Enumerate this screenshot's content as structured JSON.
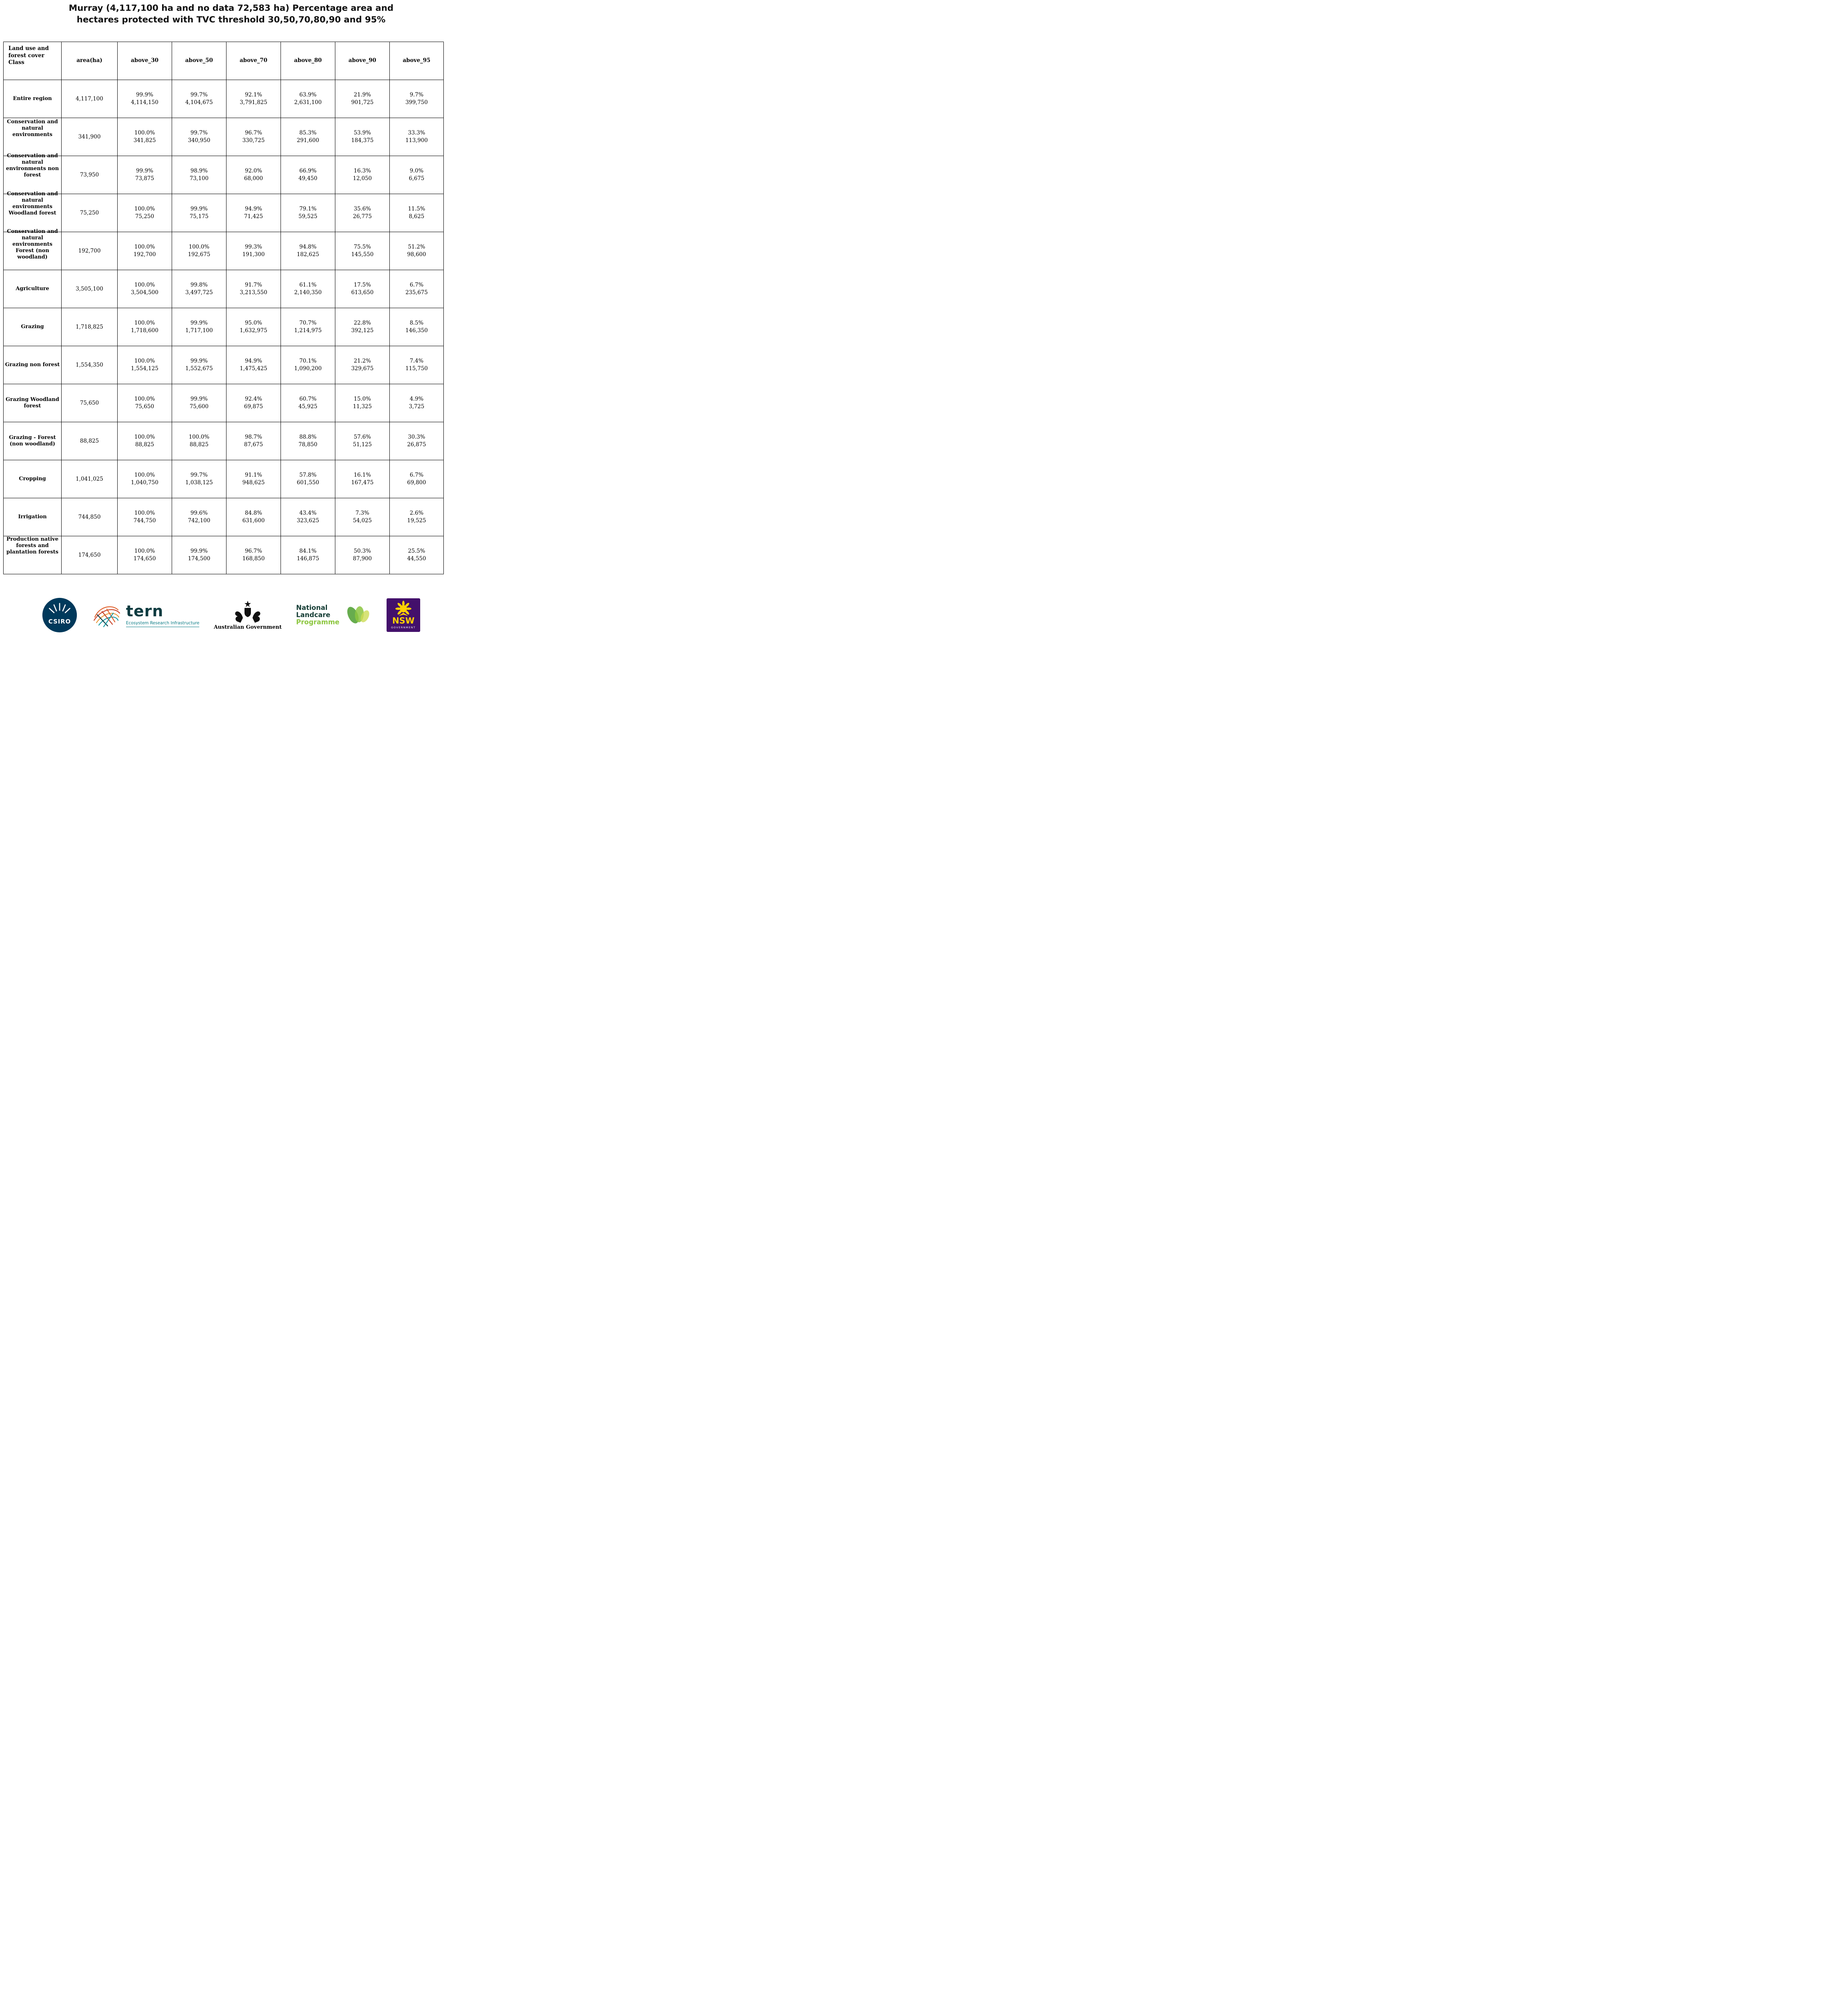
{
  "title": {
    "line1": "Murray (4,117,100 ha and no data 72,583 ha) Percentage area and",
    "line2": "hectares protected with TVC threshold 30,50,70,80,90 and 95%"
  },
  "table": {
    "columns": [
      "Land use and forest cover Class",
      "area(ha)",
      "above_30",
      "above_50",
      "above_70",
      "above_80",
      "above_90",
      "above_95"
    ],
    "rows": [
      {
        "label": "Entire region",
        "area": "4,117,100",
        "values": [
          {
            "pct": "99.9%",
            "ha": "4,114,150"
          },
          {
            "pct": "99.7%",
            "ha": "4,104,675"
          },
          {
            "pct": "92.1%",
            "ha": "3,791,825"
          },
          {
            "pct": "63.9%",
            "ha": "2,631,100"
          },
          {
            "pct": "21.9%",
            "ha": "901,725"
          },
          {
            "pct": "9.7%",
            "ha": "399,750"
          }
        ]
      },
      {
        "label": "Conservation and natural environments",
        "area": "341,900",
        "values": [
          {
            "pct": "100.0%",
            "ha": "341,825"
          },
          {
            "pct": "99.7%",
            "ha": "340,950"
          },
          {
            "pct": "96.7%",
            "ha": "330,725"
          },
          {
            "pct": "85.3%",
            "ha": "291,600"
          },
          {
            "pct": "53.9%",
            "ha": "184,375"
          },
          {
            "pct": "33.3%",
            "ha": "113,900"
          }
        ]
      },
      {
        "label": "Conservation and natural environments non forest",
        "area": "73,950",
        "values": [
          {
            "pct": "99.9%",
            "ha": "73,875"
          },
          {
            "pct": "98.9%",
            "ha": "73,100"
          },
          {
            "pct": "92.0%",
            "ha": "68,000"
          },
          {
            "pct": "66.9%",
            "ha": "49,450"
          },
          {
            "pct": "16.3%",
            "ha": "12,050"
          },
          {
            "pct": "9.0%",
            "ha": "6,675"
          }
        ]
      },
      {
        "label": "Conservation and natural environments Woodland forest",
        "area": "75,250",
        "values": [
          {
            "pct": "100.0%",
            "ha": "75,250"
          },
          {
            "pct": "99.9%",
            "ha": "75,175"
          },
          {
            "pct": "94.9%",
            "ha": "71,425"
          },
          {
            "pct": "79.1%",
            "ha": "59,525"
          },
          {
            "pct": "35.6%",
            "ha": "26,775"
          },
          {
            "pct": "11.5%",
            "ha": "8,625"
          }
        ]
      },
      {
        "label": "Conservation and natural environments Forest (non woodland)",
        "area": "192,700",
        "values": [
          {
            "pct": "100.0%",
            "ha": "192,700"
          },
          {
            "pct": "100.0%",
            "ha": "192,675"
          },
          {
            "pct": "99.3%",
            "ha": "191,300"
          },
          {
            "pct": "94.8%",
            "ha": "182,625"
          },
          {
            "pct": "75.5%",
            "ha": "145,550"
          },
          {
            "pct": "51.2%",
            "ha": "98,600"
          }
        ]
      },
      {
        "label": "Agriculture",
        "area": "3,505,100",
        "values": [
          {
            "pct": "100.0%",
            "ha": "3,504,500"
          },
          {
            "pct": "99.8%",
            "ha": "3,497,725"
          },
          {
            "pct": "91.7%",
            "ha": "3,213,550"
          },
          {
            "pct": "61.1%",
            "ha": "2,140,350"
          },
          {
            "pct": "17.5%",
            "ha": "613,650"
          },
          {
            "pct": "6.7%",
            "ha": "235,675"
          }
        ]
      },
      {
        "label": "Grazing",
        "area": "1,718,825",
        "values": [
          {
            "pct": "100.0%",
            "ha": "1,718,600"
          },
          {
            "pct": "99.9%",
            "ha": "1,717,100"
          },
          {
            "pct": "95.0%",
            "ha": "1,632,975"
          },
          {
            "pct": "70.7%",
            "ha": "1,214,975"
          },
          {
            "pct": "22.8%",
            "ha": "392,125"
          },
          {
            "pct": "8.5%",
            "ha": "146,350"
          }
        ]
      },
      {
        "label": "Grazing non forest",
        "area": "1,554,350",
        "values": [
          {
            "pct": "100.0%",
            "ha": "1,554,125"
          },
          {
            "pct": "99.9%",
            "ha": "1,552,675"
          },
          {
            "pct": "94.9%",
            "ha": "1,475,425"
          },
          {
            "pct": "70.1%",
            "ha": "1,090,200"
          },
          {
            "pct": "21.2%",
            "ha": "329,675"
          },
          {
            "pct": "7.4%",
            "ha": "115,750"
          }
        ]
      },
      {
        "label": "Grazing Woodland forest",
        "area": "75,650",
        "values": [
          {
            "pct": "100.0%",
            "ha": "75,650"
          },
          {
            "pct": "99.9%",
            "ha": "75,600"
          },
          {
            "pct": "92.4%",
            "ha": "69,875"
          },
          {
            "pct": "60.7%",
            "ha": "45,925"
          },
          {
            "pct": "15.0%",
            "ha": "11,325"
          },
          {
            "pct": "4.9%",
            "ha": "3,725"
          }
        ]
      },
      {
        "label": "Grazing - Forest (non woodland)",
        "area": "88,825",
        "values": [
          {
            "pct": "100.0%",
            "ha": "88,825"
          },
          {
            "pct": "100.0%",
            "ha": "88,825"
          },
          {
            "pct": "98.7%",
            "ha": "87,675"
          },
          {
            "pct": "88.8%",
            "ha": "78,850"
          },
          {
            "pct": "57.6%",
            "ha": "51,125"
          },
          {
            "pct": "30.3%",
            "ha": "26,875"
          }
        ]
      },
      {
        "label": "Cropping",
        "area": "1,041,025",
        "values": [
          {
            "pct": "100.0%",
            "ha": "1,040,750"
          },
          {
            "pct": "99.7%",
            "ha": "1,038,125"
          },
          {
            "pct": "91.1%",
            "ha": "948,625"
          },
          {
            "pct": "57.8%",
            "ha": "601,550"
          },
          {
            "pct": "16.1%",
            "ha": "167,475"
          },
          {
            "pct": "6.7%",
            "ha": "69,800"
          }
        ]
      },
      {
        "label": "Irrigation",
        "area": "744,850",
        "values": [
          {
            "pct": "100.0%",
            "ha": "744,750"
          },
          {
            "pct": "99.6%",
            "ha": "742,100"
          },
          {
            "pct": "84.8%",
            "ha": "631,600"
          },
          {
            "pct": "43.4%",
            "ha": "323,625"
          },
          {
            "pct": "7.3%",
            "ha": "54,025"
          },
          {
            "pct": "2.6%",
            "ha": "19,525"
          }
        ]
      },
      {
        "label": "Production native forests and plantation forests",
        "area": "174,650",
        "values": [
          {
            "pct": "100.0%",
            "ha": "174,650"
          },
          {
            "pct": "99.9%",
            "ha": "174,500"
          },
          {
            "pct": "96.7%",
            "ha": "168,850"
          },
          {
            "pct": "84.1%",
            "ha": "146,875"
          },
          {
            "pct": "50.3%",
            "ha": "87,900"
          },
          {
            "pct": "25.5%",
            "ha": "44,550"
          }
        ]
      }
    ]
  },
  "footer": {
    "csiro": {
      "name": "CSIRO"
    },
    "tern": {
      "name": "tern",
      "subtitle": "Ecosystem Research Infrastructure"
    },
    "australian_government": {
      "name": "Australian Government"
    },
    "landcare": {
      "line1": "National",
      "line2": "Landcare",
      "line3": "Programme"
    },
    "nsw": {
      "name": "NSW",
      "sub": "GOVERNMENT"
    }
  },
  "brand": {
    "csiro_blue": "#00395B",
    "tern_teal": "#0B7C86",
    "landcare_green": "#8CC63F",
    "nsw_purple": "#43106B",
    "nsw_yellow": "#FFD100"
  }
}
